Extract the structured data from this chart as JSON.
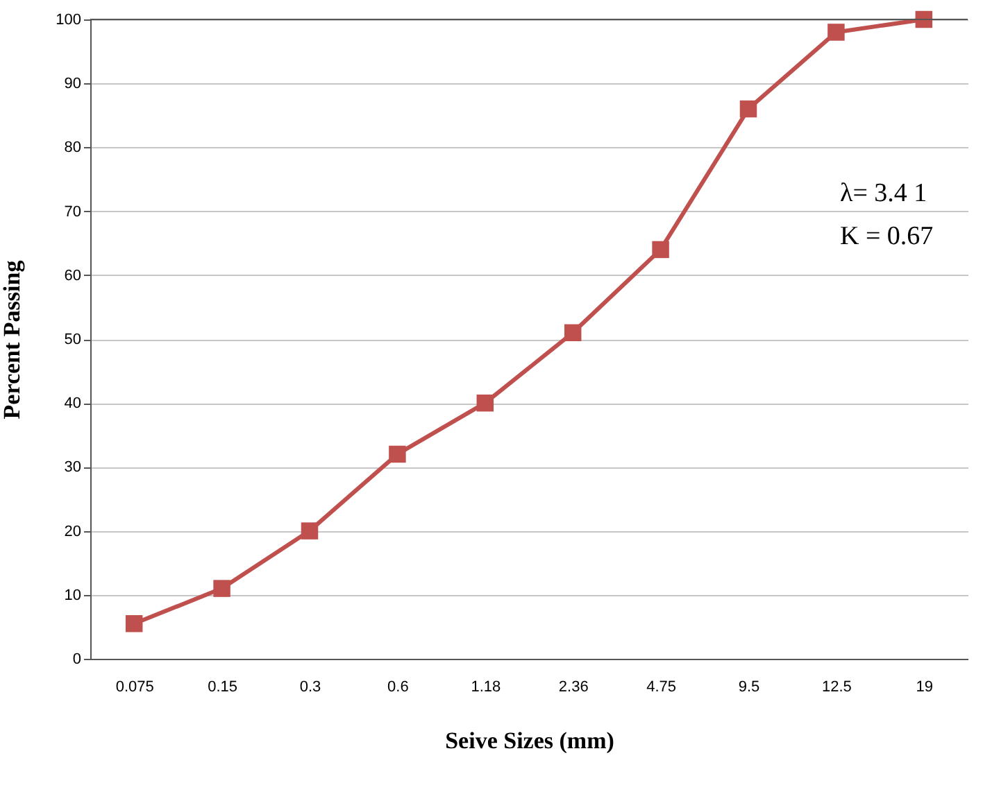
{
  "chart_data": {
    "type": "line",
    "xlabel": "Seive Sizes (mm)",
    "ylabel": "Percent Passing",
    "categories": [
      "0.075",
      "0.15",
      "0.3",
      "0.6",
      "1.18",
      "2.36",
      "4.75",
      "9.5",
      "12.5",
      "19"
    ],
    "series": [
      {
        "color": "#c0504d",
        "values": [
          5.5,
          11,
          20,
          32,
          40,
          51,
          64,
          86,
          98,
          100
        ]
      }
    ],
    "ylim": [
      0,
      100
    ],
    "yticks": [
      0,
      10,
      20,
      30,
      40,
      50,
      60,
      70,
      80,
      90,
      100
    ],
    "grid": "y",
    "marker": "square",
    "line_style": "solid",
    "annotations": [
      "λ= 3.4 1",
      "K = 0.67"
    ]
  }
}
